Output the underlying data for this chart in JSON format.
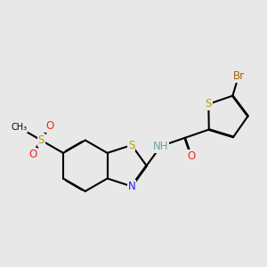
{
  "bg": "#e8e8e8",
  "bond_color": "#000000",
  "bw": 1.5,
  "dbo": 0.018,
  "colors": {
    "S": "#b8a000",
    "N": "#2020ff",
    "O": "#ff2020",
    "Br": "#a06000",
    "NH": "#60aaaa",
    "C": "#000000"
  },
  "fs": 8.5
}
